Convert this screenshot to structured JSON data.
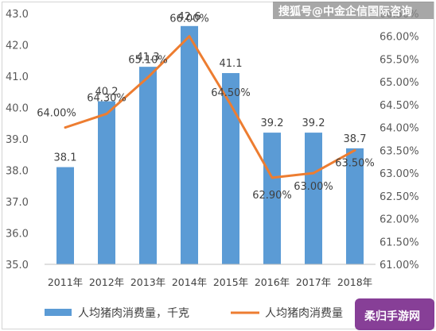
{
  "watermark": "搜狐号@中金企信国际咨询",
  "corner_badge": "柔归手游网",
  "legend": {
    "bar_label": "人均猪肉消费量，千克",
    "line_label": "人均猪肉消费量"
  },
  "colors": {
    "bar": "#5b9bd5",
    "line": "#ed7d31",
    "axis_text": "#595959"
  },
  "chart_data": {
    "type": "bar",
    "categories": [
      "2011年",
      "2012年",
      "2013年",
      "2014年",
      "2015年",
      "2016年",
      "2017年",
      "2018年"
    ],
    "series": [
      {
        "name": "人均猪肉消费量，千克",
        "type": "bar",
        "axis": "left",
        "values": [
          38.1,
          40.2,
          41.3,
          42.6,
          41.1,
          39.2,
          39.2,
          38.7
        ],
        "labels": [
          "38.1",
          "40.2",
          "41.3",
          "42.6",
          "41.1",
          "39.2",
          "39.2",
          "38.7"
        ]
      },
      {
        "name": "人均猪肉消费量",
        "type": "line",
        "axis": "right",
        "values": [
          64.0,
          64.3,
          65.1,
          66.0,
          64.5,
          62.9,
          63.0,
          63.5
        ],
        "labels": [
          "64.00%",
          "64.30%",
          "65.10%",
          "66.00%",
          "64.50%",
          "62.90%",
          "63.00%",
          "63.50%"
        ]
      }
    ],
    "y_left": {
      "range": [
        35.0,
        43.0
      ],
      "ticks": [
        "35.0",
        "36.0",
        "37.0",
        "38.0",
        "39.0",
        "40.0",
        "41.0",
        "42.0",
        "43.0"
      ]
    },
    "y_right": {
      "range": [
        61.0,
        66.5
      ],
      "ticks": [
        "61.00%",
        "61.50%",
        "62.00%",
        "62.50%",
        "63.00%",
        "63.50%",
        "64.00%",
        "64.50%",
        "65.00%",
        "65.50%",
        "66.00%",
        "66.50%"
      ]
    },
    "grid": false,
    "legend_position": "bottom"
  }
}
